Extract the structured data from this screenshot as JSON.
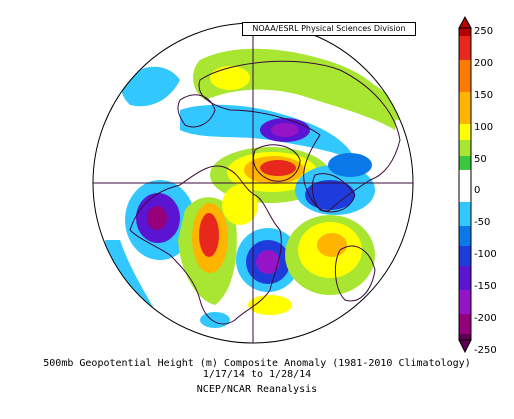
{
  "credit": "NOAA/ESRL Physical Sciences Division",
  "caption": {
    "line1": "500mb Geopotential Height (m) Composite Anomaly (1981-2010 Climatology)",
    "line2": "1/17/14  to 1/28/14",
    "line3": "NCEP/NCAR Reanalysis"
  },
  "colorbar": {
    "labels": [
      "250",
      "200",
      "150",
      "100",
      "50",
      "0",
      "-50",
      "-100",
      "-150",
      "-200",
      "-250"
    ],
    "colors": [
      "#b40000",
      "#e8281c",
      "#ff7a00",
      "#ffb400",
      "#ffff00",
      "#a8e632",
      "#3cc83c",
      "#ffffff",
      "#32c8ff",
      "#0a78e6",
      "#1e3cdc",
      "#5a14d2",
      "#9614c8",
      "#96007a",
      "#5a0050"
    ]
  },
  "chart_data": {
    "type": "map",
    "projection": "polar-stereographic",
    "variable": "500mb Geopotential Height Composite Anomaly",
    "units": "m"
  }
}
